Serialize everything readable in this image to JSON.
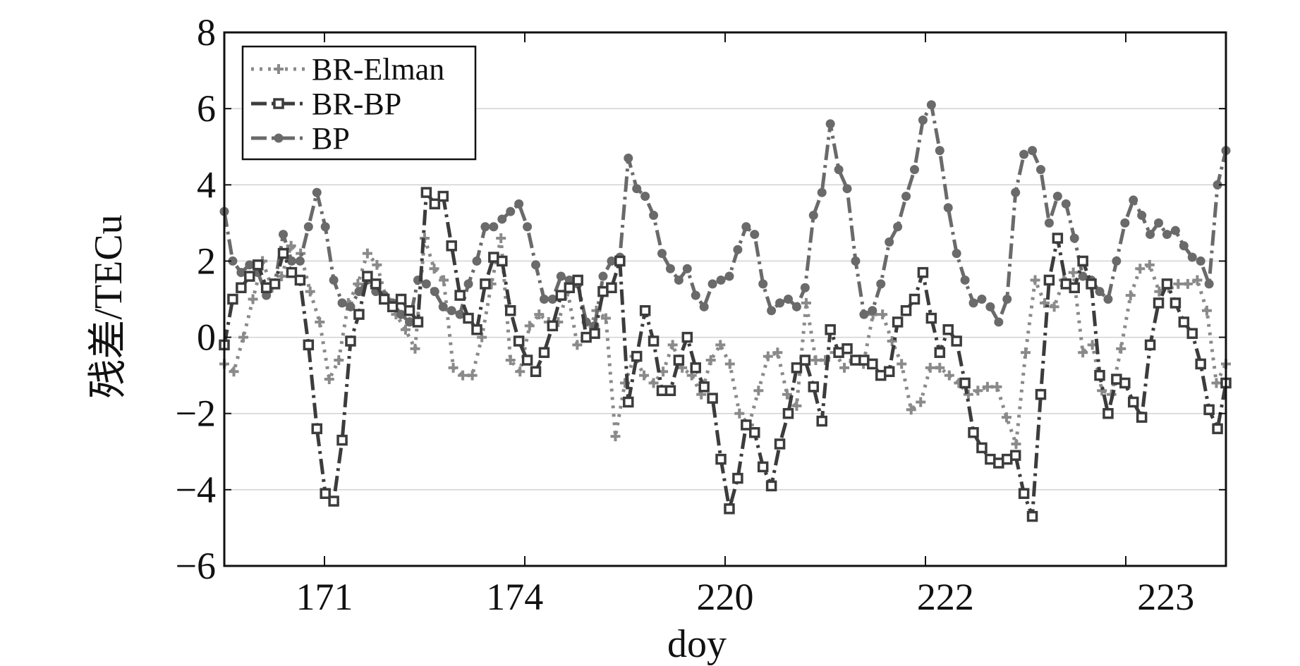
{
  "chart_data": {
    "type": "line",
    "title": "",
    "xlabel": "doy",
    "ylabel": "残差/TECu",
    "ylim": [
      -6,
      8
    ],
    "yticks": [
      8,
      6,
      4,
      2,
      0,
      -2,
      -4,
      -6
    ],
    "ytick_labels": [
      "8",
      "6",
      "4",
      "2",
      "0",
      "−2",
      "−4",
      "−6"
    ],
    "x_index_range": [
      0,
      100
    ],
    "xtick_labels": [
      "171",
      "174",
      "220",
      "222",
      "223"
    ],
    "xtick_positions": [
      10,
      30,
      50,
      70,
      90
    ],
    "xtick_label_positions": [
      10,
      29,
      50,
      72,
      94
    ],
    "grid": true,
    "legend_position": "top-left",
    "series": [
      {
        "name": "BR-Elman",
        "color": "#8a8a8a",
        "marker": "plus",
        "values": [
          -0.7,
          -0.9,
          0.0,
          1.0,
          2.0,
          1.3,
          1.6,
          2.4,
          2.2,
          1.2,
          0.4,
          -1.1,
          -0.6,
          0.9,
          1.4,
          2.2,
          1.9,
          1.0,
          0.6,
          0.2,
          -0.3,
          2.6,
          1.8,
          1.5,
          -0.8,
          -1.0,
          -1.0,
          0.0,
          1.4,
          2.6,
          -0.6,
          -0.9,
          0.3,
          0.6,
          0.4,
          0.4,
          1.2,
          -0.2,
          0.0,
          0.7,
          0.5,
          -2.6,
          -1.2,
          -0.5,
          -1.0,
          -1.2,
          -0.9,
          -0.2,
          -0.8,
          -1.0,
          -1.5,
          -0.6,
          -0.2,
          -0.7,
          -2.0,
          -2.3,
          -1.4,
          -0.5,
          -0.4,
          -1.5,
          -1.8,
          0.9,
          -0.6,
          -0.6,
          -0.4,
          -0.8,
          -0.6,
          -0.7,
          0.6,
          0.6,
          -0.1,
          -0.7,
          -1.9,
          -1.7,
          -0.8,
          -0.8,
          -1.0,
          -1.2,
          -1.5,
          -1.4,
          -1.3,
          -1.3,
          -2.1,
          -2.8,
          -0.4,
          1.5,
          0.9,
          0.8,
          1.5,
          1.7,
          -0.4,
          -0.2,
          -1.4,
          -1.5,
          -0.3,
          1.1,
          1.8,
          1.9,
          1.2,
          1.3,
          1.4,
          1.4,
          1.5,
          0.7,
          -1.2,
          -0.7
        ]
      },
      {
        "name": "BR-BP",
        "color": "#3c3c3c",
        "marker": "square",
        "values": [
          -0.2,
          1.0,
          1.3,
          1.6,
          1.9,
          1.3,
          1.4,
          2.2,
          1.7,
          1.5,
          -0.2,
          -2.4,
          -4.1,
          -4.3,
          -2.7,
          -0.1,
          0.6,
          1.6,
          1.4,
          1.0,
          0.8,
          1.0,
          0.7,
          0.4,
          3.8,
          3.5,
          3.7,
          2.4,
          1.1,
          0.5,
          0.2,
          1.4,
          2.1,
          2.0,
          0.7,
          -0.1,
          -0.6,
          -0.9,
          -0.4,
          0.3,
          1.1,
          1.3,
          1.5,
          0.0,
          0.1,
          1.2,
          1.3,
          2.0,
          -1.7,
          -0.5,
          0.7,
          -0.1,
          -1.4,
          -1.4,
          -0.6,
          0.0,
          -0.8,
          -1.3,
          -1.6,
          -3.2,
          -4.5,
          -3.7,
          -2.3,
          -2.5,
          -3.4,
          -3.9,
          -2.8,
          -2.0,
          -0.8,
          -0.6,
          -1.3,
          -2.2,
          0.2,
          -0.4,
          -0.3,
          -0.6,
          -0.6,
          -0.7,
          -1.0,
          -0.9,
          0.4,
          0.7,
          1.0,
          1.7,
          0.5,
          -0.4,
          0.2,
          -0.1,
          -1.2,
          -2.5,
          -2.9,
          -3.2,
          -3.3,
          -3.2,
          -3.1,
          -4.1,
          -4.7,
          -1.5,
          1.5,
          2.6,
          1.4,
          1.3,
          2.0,
          1.4,
          -1.0,
          -2.0,
          -1.1,
          -1.2,
          -1.7,
          -2.1,
          -0.2,
          0.9,
          1.4,
          0.9,
          0.4,
          0.1,
          -0.7,
          -1.9,
          -2.4,
          -1.2
        ]
      },
      {
        "name": "BP",
        "color": "#6a6a6a",
        "marker": "circle",
        "values": [
          3.3,
          2.0,
          1.7,
          1.9,
          1.7,
          1.1,
          1.4,
          2.7,
          2.0,
          2.0,
          2.9,
          3.8,
          2.9,
          1.5,
          0.9,
          0.8,
          1.2,
          1.5,
          1.2,
          1.1,
          0.9,
          0.6,
          0.4,
          1.5,
          1.4,
          1.2,
          0.8,
          0.7,
          0.6,
          1.4,
          2.0,
          2.9,
          2.9,
          3.1,
          3.3,
          3.5,
          2.9,
          1.9,
          1.0,
          1.0,
          1.6,
          1.5,
          1.4,
          0.4,
          0.3,
          1.6,
          2.0,
          2.1,
          4.7,
          3.9,
          3.7,
          3.2,
          2.2,
          1.8,
          1.5,
          1.8,
          1.1,
          0.8,
          1.4,
          1.5,
          1.6,
          2.3,
          2.9,
          2.7,
          1.4,
          0.7,
          0.9,
          1.0,
          0.8,
          1.3,
          3.2,
          3.8,
          5.6,
          4.4,
          3.9,
          2.0,
          0.6,
          0.7,
          1.4,
          2.5,
          2.9,
          3.7,
          4.4,
          5.7,
          6.1,
          4.9,
          3.4,
          2.2,
          1.5,
          0.9,
          1.0,
          0.8,
          0.4,
          1.0,
          3.8,
          4.8,
          4.9,
          4.4,
          3.0,
          3.7,
          3.5,
          2.6,
          1.6,
          1.5,
          1.2,
          1.0,
          2.0,
          3.0,
          3.6,
          3.2,
          2.7,
          3.0,
          2.7,
          2.8,
          2.4,
          2.1,
          2.0,
          1.4,
          4.0,
          4.9
        ]
      }
    ]
  }
}
